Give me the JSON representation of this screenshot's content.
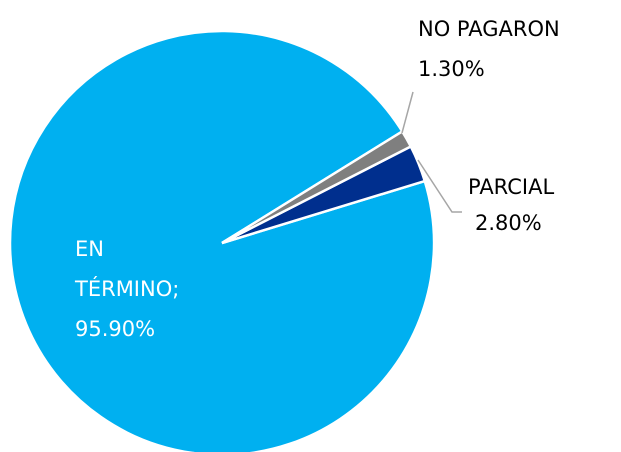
{
  "chart_data": {
    "type": "pie",
    "categories": [
      "EN TÉRMINO;",
      "PARCIAL",
      "NO PAGARON"
    ],
    "values": [
      95.9,
      2.8,
      1.3
    ],
    "value_labels": [
      "95.90%",
      "2.80%",
      "1.30%"
    ],
    "colors": [
      "#00b0f0",
      "#002f8e",
      "#7f7f7f"
    ]
  }
}
